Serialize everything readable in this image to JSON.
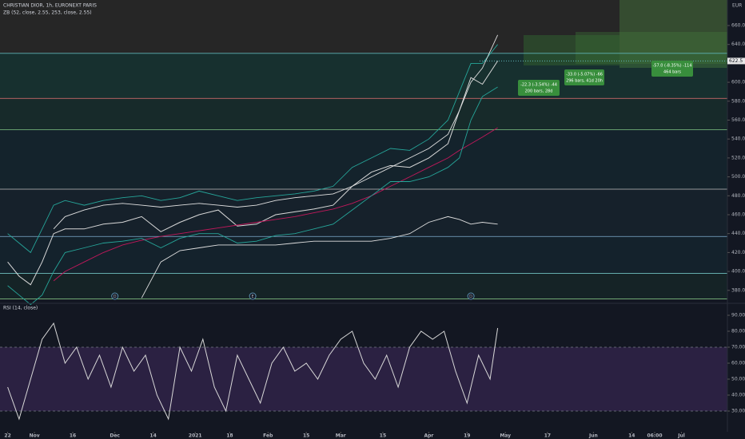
{
  "chart_data": [
    {
      "type": "line",
      "title": "CHRISTIAN DIOR, 1h, EURONEXT PARIS",
      "subtitle": "ZB (52, close, 2.55, 253, close, 2.55)",
      "currency": "EUR",
      "xlim": [
        -2,
        188
      ],
      "ylim": [
        368,
        687
      ],
      "yticks": [
        {
          "value": 380,
          "label": "380.0"
        },
        {
          "value": 400,
          "label": "400.0"
        },
        {
          "value": 420,
          "label": "420.0"
        },
        {
          "value": 440,
          "label": "440.0"
        },
        {
          "value": 460,
          "label": "460.0"
        },
        {
          "value": 480,
          "label": "480.0"
        },
        {
          "value": 500,
          "label": "500.0"
        },
        {
          "value": 520,
          "label": "520.0"
        },
        {
          "value": 540,
          "label": "540.0"
        },
        {
          "value": 560,
          "label": "560.0"
        },
        {
          "value": 580,
          "label": "580.0"
        },
        {
          "value": 600,
          "label": "600.0"
        },
        {
          "value": 640,
          "label": "640.0"
        },
        {
          "value": 660,
          "label": "660.0"
        }
      ],
      "last_price": 622.5,
      "x": [
        0,
        3,
        6,
        9,
        12,
        15,
        20,
        25,
        30,
        35,
        40,
        45,
        50,
        55,
        60,
        65,
        70,
        75,
        80,
        85,
        90,
        95,
        100,
        105,
        110,
        115,
        118,
        121,
        124,
        128
      ],
      "series": [
        {
          "color": "#d8d8d8",
          "values": [
            410,
            395,
            386,
            410,
            440,
            445,
            445,
            450,
            452,
            458,
            442,
            452,
            460,
            465,
            448,
            450,
            460,
            463,
            466,
            470,
            490,
            505,
            512,
            510,
            520,
            535,
            570,
            605,
            598,
            622.5
          ]
        },
        {
          "color": "#c2185b",
          "values": [
            null,
            null,
            null,
            null,
            390,
            400,
            410,
            420,
            428,
            433,
            437,
            440,
            443,
            446,
            449,
            452,
            455,
            458,
            462,
            466,
            472,
            480,
            490,
            500,
            510,
            520,
            528,
            535,
            542,
            552
          ]
        },
        {
          "color": "#26a69a",
          "values": [
            440,
            430,
            420,
            445,
            470,
            475,
            470,
            475,
            478,
            480,
            475,
            478,
            485,
            480,
            475,
            478,
            480,
            482,
            485,
            490,
            510,
            520,
            530,
            528,
            540,
            560,
            590,
            620,
            620,
            640
          ]
        },
        {
          "color": "#26a69a",
          "values": [
            385,
            375,
            365,
            375,
            400,
            420,
            425,
            430,
            432,
            435,
            425,
            435,
            440,
            440,
            430,
            432,
            438,
            440,
            445,
            450,
            465,
            480,
            495,
            495,
            500,
            510,
            520,
            560,
            585,
            595
          ]
        },
        {
          "color": "#e0e0e0",
          "values": [
            null,
            null,
            null,
            null,
            445,
            458,
            465,
            470,
            472,
            470,
            468,
            470,
            472,
            470,
            468,
            470,
            475,
            478,
            480,
            482,
            490,
            500,
            510,
            520,
            530,
            545,
            570,
            600,
            615,
            650
          ]
        },
        {
          "color": "#e0e0e0",
          "values": [
            null,
            null,
            null,
            null,
            null,
            null,
            null,
            null,
            null,
            372,
            410,
            422,
            425,
            428,
            428,
            428,
            428,
            430,
            432,
            432,
            432,
            432,
            435,
            440,
            452,
            458,
            455,
            450,
            452,
            450
          ]
        }
      ],
      "hlines": [
        {
          "value": 630.6,
          "color": "#5fb4b8",
          "zone": "#17302f"
        },
        {
          "value": 583,
          "color": "#e57373",
          "zone": "#172a2a"
        },
        {
          "value": 550,
          "color": "#81c784",
          "zone": "#14232c"
        },
        {
          "value": 487,
          "color": "#c0c0c0",
          "zone": "#16212b"
        },
        {
          "value": 437,
          "color": "#7fb0d0",
          "zone": "#14222c"
        },
        {
          "value": 398,
          "color": "#70c0c0",
          "zone": "#152326"
        },
        {
          "value": 371,
          "color": "#80c080",
          "zone": "#131722"
        }
      ],
      "events": [
        {
          "label": "D",
          "x": 28
        },
        {
          "label": "E",
          "x": 64
        },
        {
          "label": "D",
          "x": 121
        }
      ],
      "annotations": [
        "-22.3 (-3.54%) -44",
        "200 bars, 28d",
        "-33.0 (-5.07%) -66",
        "296 bars, 41d 20h",
        "-57.0 (-8.35%) -114",
        "464 bars"
      ]
    },
    {
      "type": "line",
      "title": "RSI (14, close)",
      "xlim": [
        -2,
        188
      ],
      "ylim": [
        17,
        95
      ],
      "band": [
        30,
        70
      ],
      "band_color": "#2b2142",
      "yticks": [
        {
          "value": 30,
          "label": "30.00"
        },
        {
          "value": 40,
          "label": "40.00"
        },
        {
          "value": 50,
          "label": "50.00"
        },
        {
          "value": 60,
          "label": "60.00"
        },
        {
          "value": 70,
          "label": "70.00"
        },
        {
          "value": 80,
          "label": "80.00"
        },
        {
          "value": 90,
          "label": "90.00"
        }
      ],
      "xticks": [
        {
          "value": 0,
          "label": "22"
        },
        {
          "value": 7,
          "label": "Nov"
        },
        {
          "value": 17,
          "label": "16"
        },
        {
          "value": 28,
          "label": "Dec"
        },
        {
          "value": 38,
          "label": "14"
        },
        {
          "value": 49,
          "label": "2021"
        },
        {
          "value": 58,
          "label": "18"
        },
        {
          "value": 68,
          "label": "Feb"
        },
        {
          "value": 78,
          "label": "15"
        },
        {
          "value": 87,
          "label": "Mar"
        },
        {
          "value": 98,
          "label": "15"
        },
        {
          "value": 110,
          "label": "Apr"
        },
        {
          "value": 120,
          "label": "19"
        },
        {
          "value": 130,
          "label": "May"
        },
        {
          "value": 141,
          "label": "17"
        },
        {
          "value": 153,
          "label": "Jun"
        },
        {
          "value": 163,
          "label": "14"
        },
        {
          "value": 169,
          "label": "06:00"
        },
        {
          "value": 176,
          "label": "Jul"
        }
      ],
      "x": [
        0,
        3,
        6,
        9,
        12,
        15,
        18,
        21,
        24,
        27,
        30,
        33,
        36,
        39,
        42,
        45,
        48,
        51,
        54,
        57,
        60,
        63,
        66,
        69,
        72,
        75,
        78,
        81,
        84,
        87,
        90,
        93,
        96,
        99,
        102,
        105,
        108,
        111,
        114,
        117,
        120,
        123,
        126,
        128
      ],
      "series": [
        {
          "color": "#d8d8d8",
          "values": [
            45,
            25,
            50,
            75,
            85,
            60,
            70,
            50,
            65,
            45,
            70,
            55,
            65,
            40,
            25,
            70,
            55,
            75,
            45,
            30,
            65,
            50,
            35,
            60,
            70,
            55,
            60,
            50,
            65,
            75,
            80,
            60,
            50,
            65,
            45,
            70,
            80,
            75,
            80,
            55,
            35,
            65,
            50,
            82
          ]
        }
      ]
    }
  ]
}
